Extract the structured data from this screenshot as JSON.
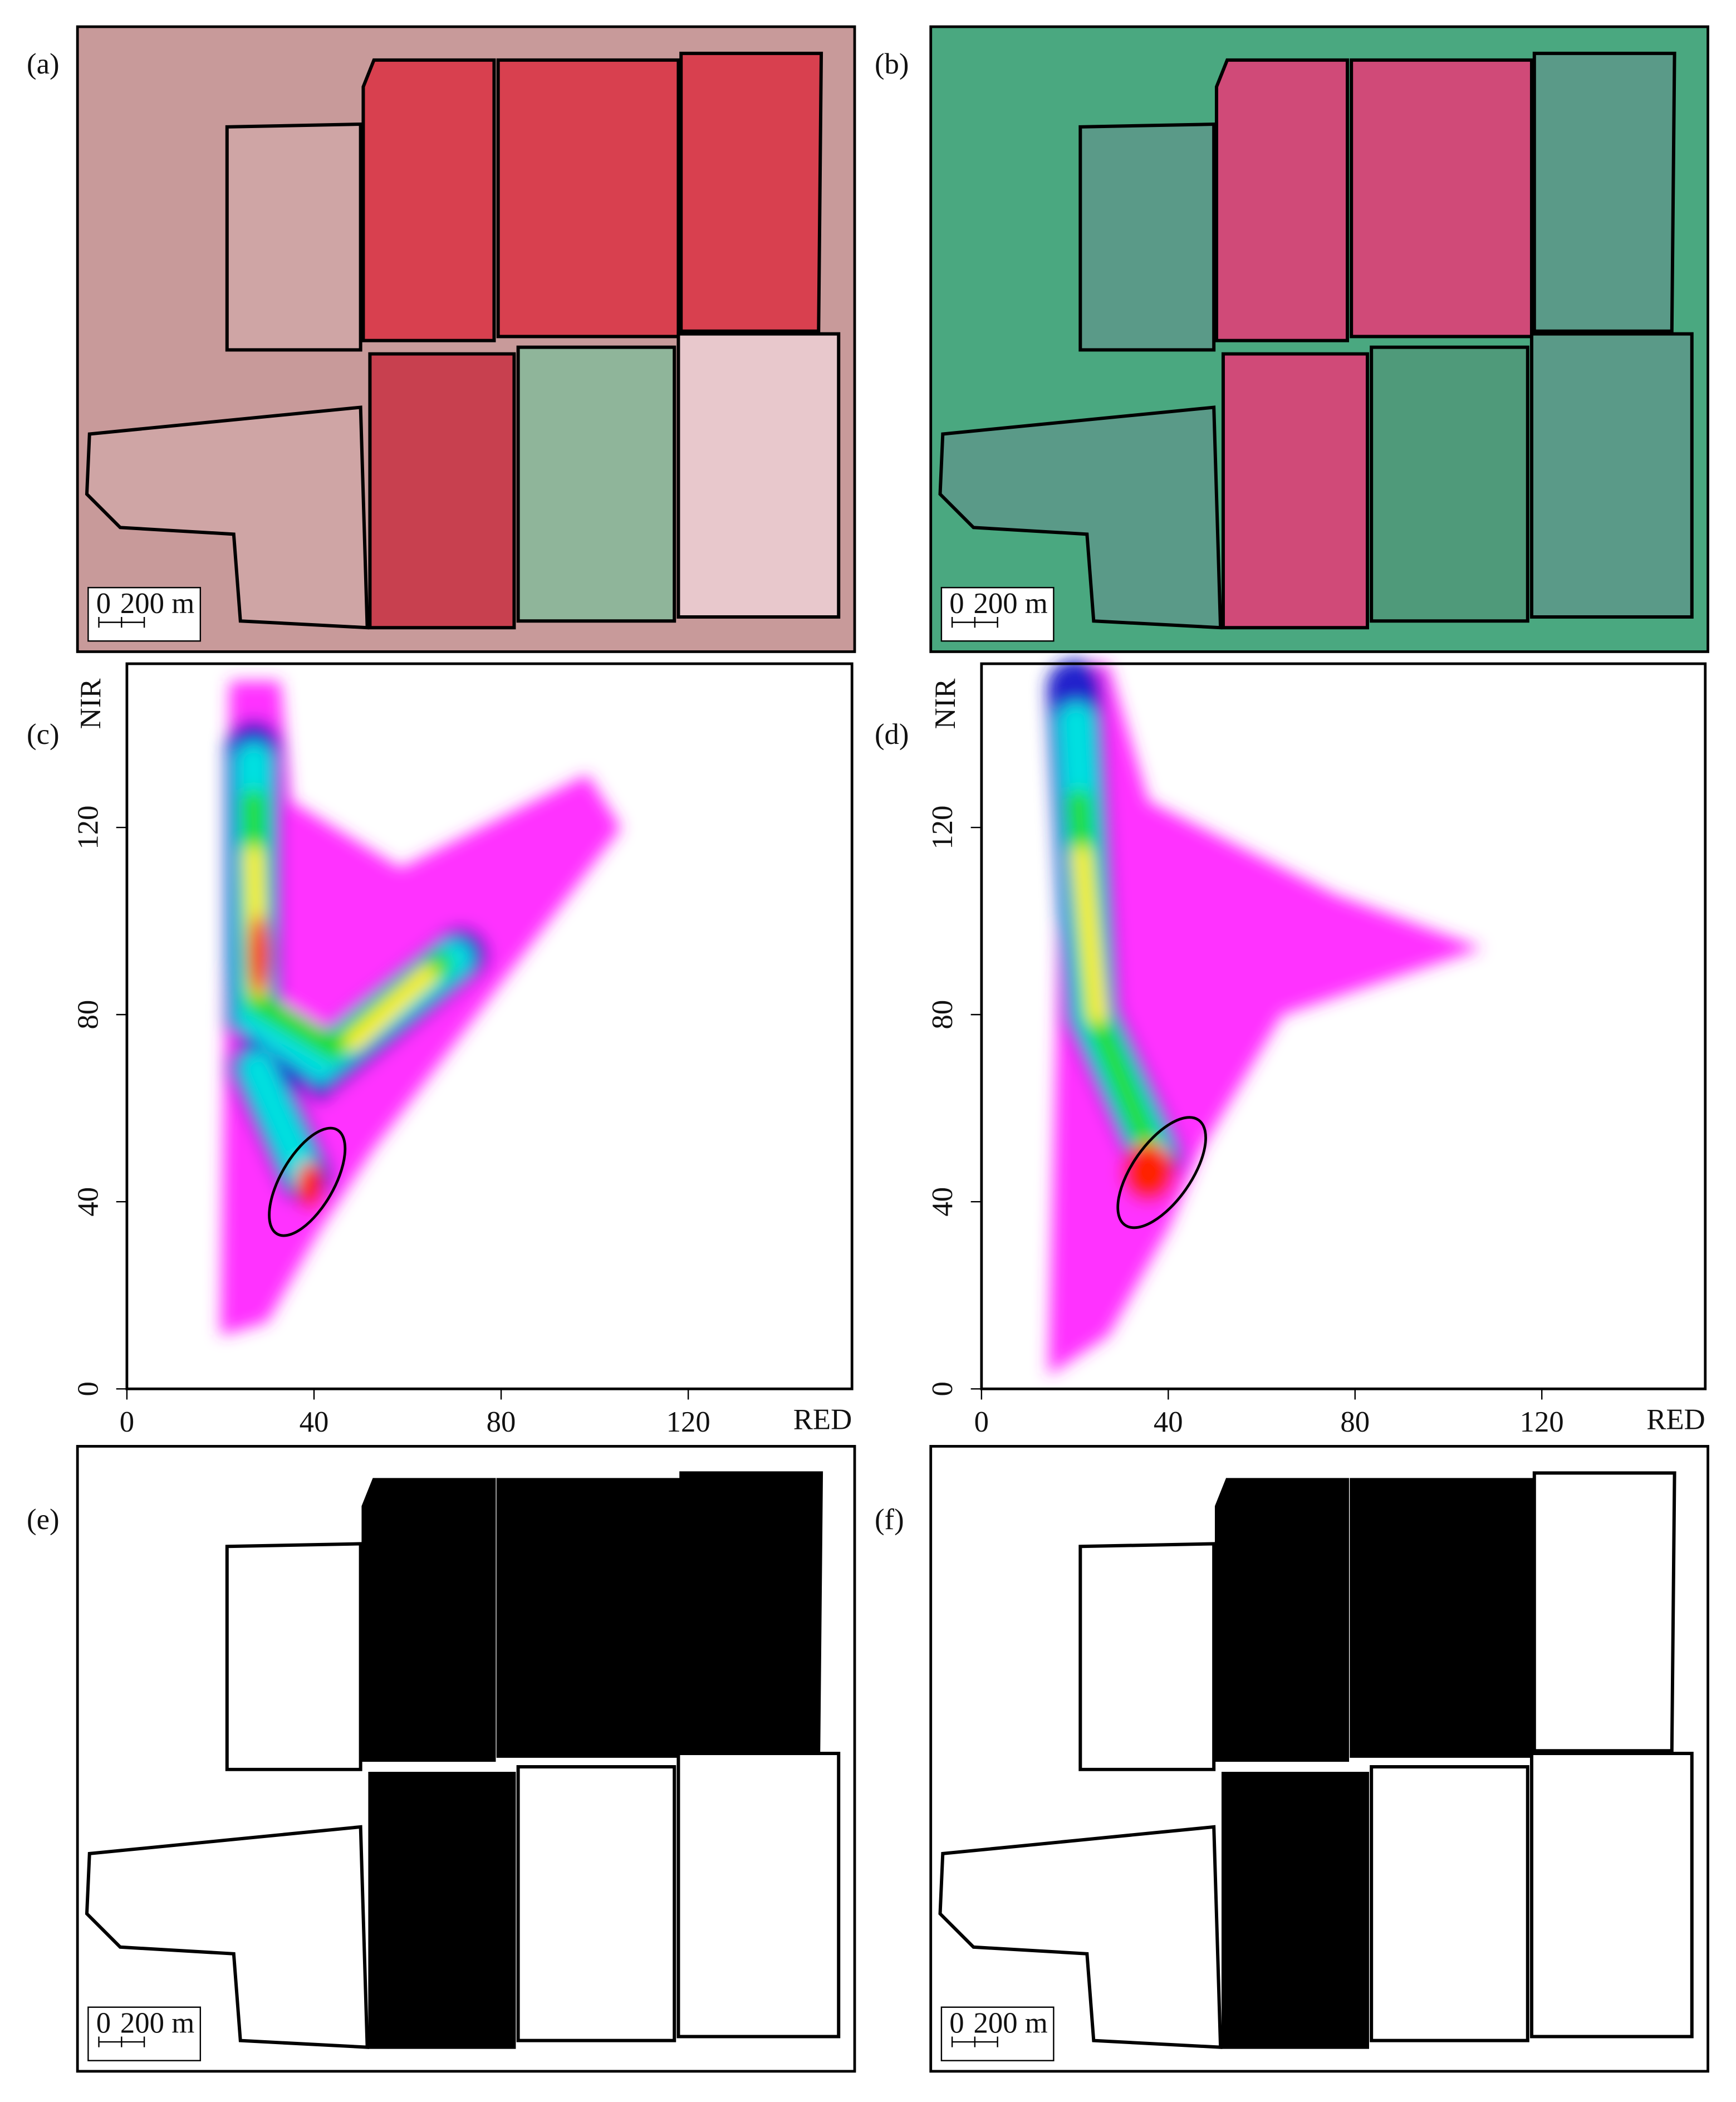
{
  "panels": [
    {
      "label": "(a)",
      "scale_bar": {
        "zero": "0",
        "length": "200 m"
      }
    },
    {
      "label": "(b)",
      "scale_bar": {
        "zero": "0",
        "length": "200 m"
      }
    },
    {
      "label": "(e)",
      "scale_bar": {
        "zero": "0",
        "length": "200 m"
      }
    },
    {
      "label": "(f)",
      "scale_bar": {
        "zero": "0",
        "length": "200 m"
      }
    }
  ],
  "chart_data": [
    {
      "type": "scatter",
      "panel_label": "(c)",
      "x_label": "RED",
      "y_label": "NIR",
      "xlim": [
        0,
        155
      ],
      "ylim": [
        0,
        155
      ],
      "xticks": [
        0,
        40,
        80,
        120
      ],
      "yticks": [
        0,
        40,
        80,
        120
      ]
    },
    {
      "type": "scatter",
      "panel_label": "(d)",
      "x_label": "RED",
      "y_label": "NIR",
      "xlim": [
        0,
        155
      ],
      "ylim": [
        0,
        155
      ],
      "xticks": [
        0,
        40,
        80,
        120
      ],
      "yticks": [
        0,
        40,
        80,
        120
      ]
    }
  ]
}
